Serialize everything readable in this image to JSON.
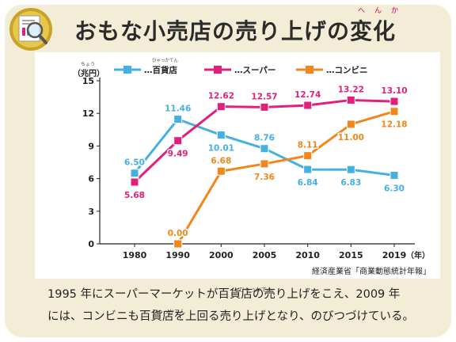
{
  "page": {
    "title": "おもな小売店の売り上げの変化",
    "title_ruby": "へんか",
    "caption_line1": "1995 年にスーパーマーケットが百貨店の売り上げをこえ、2009 年",
    "caption_line2": "には、コンビニも百貨店を上回る売り上げとなり、のびつづけている。",
    "caption_ruby1": "ひゃっかてん",
    "caption_ruby2": "ひゃっかてん",
    "source": "経済産業省「商業動態統計年報」"
  },
  "chart_data": {
    "type": "line",
    "y_unit_label": "（兆円）",
    "y_unit_ruby": "ちょう",
    "x_unit_label": "（年）",
    "legend_ruby_dept": "ひゃっかてん",
    "ylim": [
      0,
      15
    ],
    "yticks": [
      0,
      3,
      6,
      9,
      12,
      15
    ],
    "x": [
      "1980",
      "1990",
      "2000",
      "2005",
      "2010",
      "2015",
      "2019"
    ],
    "series": [
      {
        "name": "…百貨店",
        "color": "#45b0e1",
        "values": [
          6.5,
          11.46,
          10.01,
          8.76,
          6.84,
          6.83,
          6.3
        ],
        "labels": [
          "6.50",
          "11.46",
          "10.01",
          "8.76",
          "6.84",
          "6.83",
          "6.30"
        ]
      },
      {
        "name": "…スーパー",
        "color": "#e2207b",
        "values": [
          5.68,
          9.49,
          12.62,
          12.57,
          12.74,
          13.22,
          13.1
        ],
        "labels": [
          "5.68",
          "9.49",
          "12.62",
          "12.57",
          "12.74",
          "13.22",
          "13.10"
        ]
      },
      {
        "name": "…コンビニ",
        "color": "#f0871c",
        "values": [
          null,
          0.0,
          6.68,
          7.36,
          8.11,
          11.0,
          12.18
        ],
        "labels": [
          "",
          "0.00",
          "6.68",
          "7.36",
          "8.11",
          "11.00",
          "12.18"
        ]
      }
    ],
    "grid": false,
    "legend_position": "top"
  }
}
